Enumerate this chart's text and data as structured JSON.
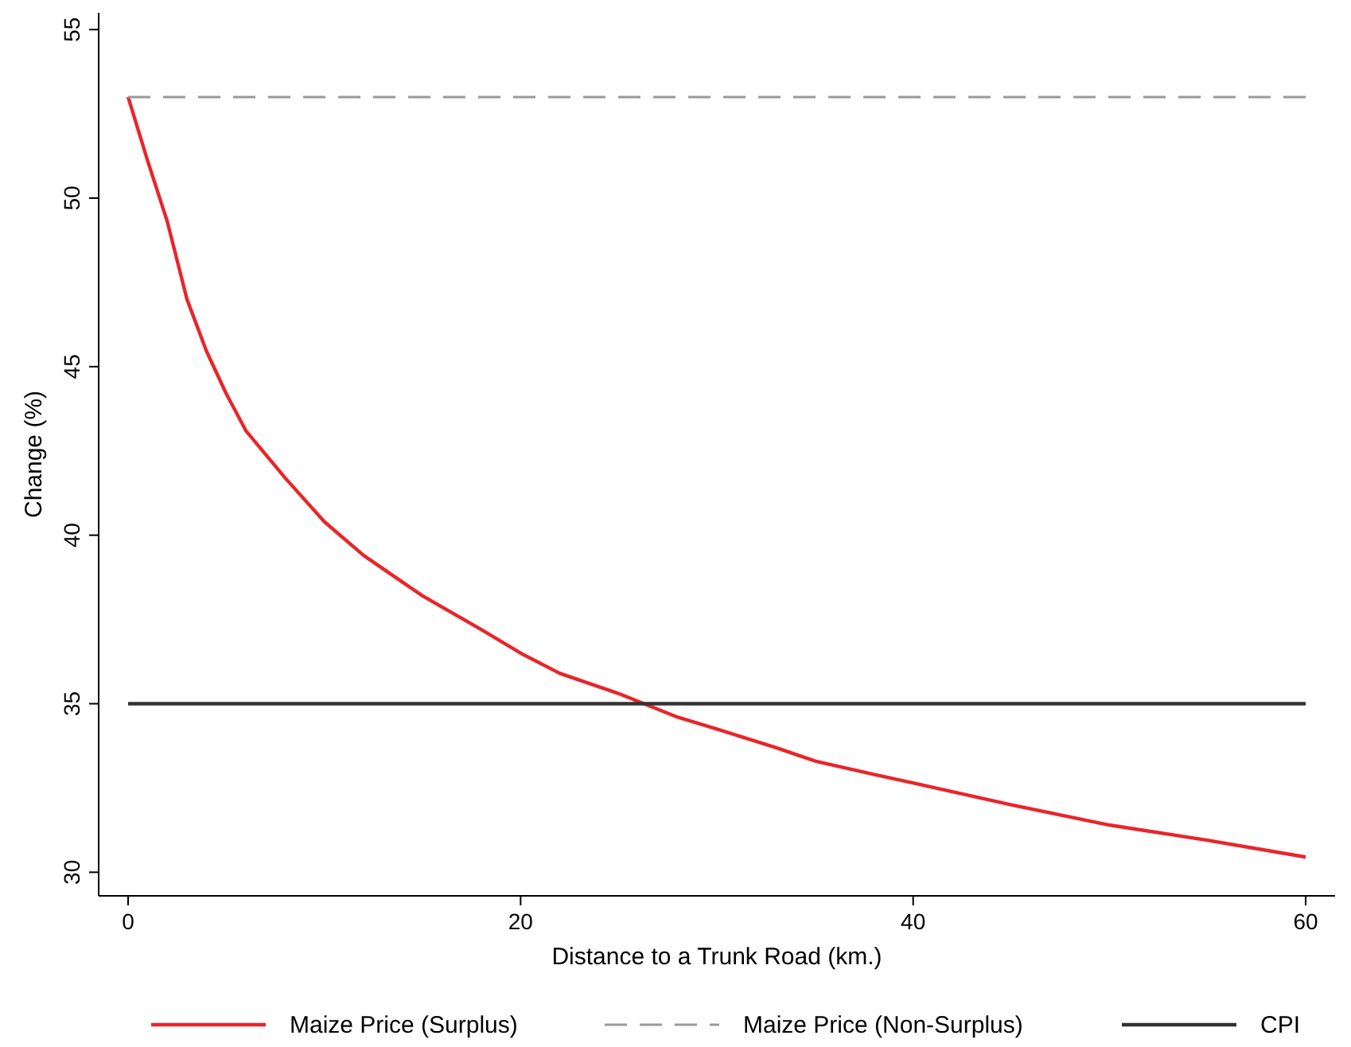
{
  "chart_data": {
    "type": "line",
    "xlabel": "Distance to a Trunk Road (km.)",
    "ylabel": "Change (%)",
    "xlim": [
      -1.5,
      61.5
    ],
    "ylim": [
      29.3,
      55.5
    ],
    "xticks": [
      0,
      20,
      40,
      60
    ],
    "yticks": [
      30,
      35,
      40,
      45,
      50,
      55
    ],
    "grid": false,
    "legend": "bottom",
    "marker": "none",
    "series": [
      {
        "name": "Maize Price (Surplus)",
        "color": "#e8262a",
        "line_style": "solid",
        "x": [
          0,
          1,
          2,
          3,
          4,
          5,
          6,
          8,
          10,
          12,
          15,
          18,
          20,
          22,
          25,
          28,
          30,
          33,
          35,
          38,
          40,
          45,
          50,
          55,
          60
        ],
        "values": [
          53,
          51.1,
          49.3,
          47.0,
          45.45,
          44.2,
          43.1,
          41.7,
          40.4,
          39.4,
          38.2,
          37.2,
          36.5,
          35.9,
          35.3,
          34.6,
          34.25,
          33.7,
          33.3,
          32.9,
          32.65,
          32.0,
          31.4,
          30.95,
          30.45
        ]
      },
      {
        "name": "Maize Price (Non-Surplus)",
        "color": "#999999",
        "line_style": "dashed",
        "x": [
          0,
          60
        ],
        "values": [
          53,
          53
        ]
      },
      {
        "name": "CPI",
        "color": "#333333",
        "line_style": "solid",
        "x": [
          0,
          60
        ],
        "values": [
          35,
          35
        ]
      }
    ]
  }
}
